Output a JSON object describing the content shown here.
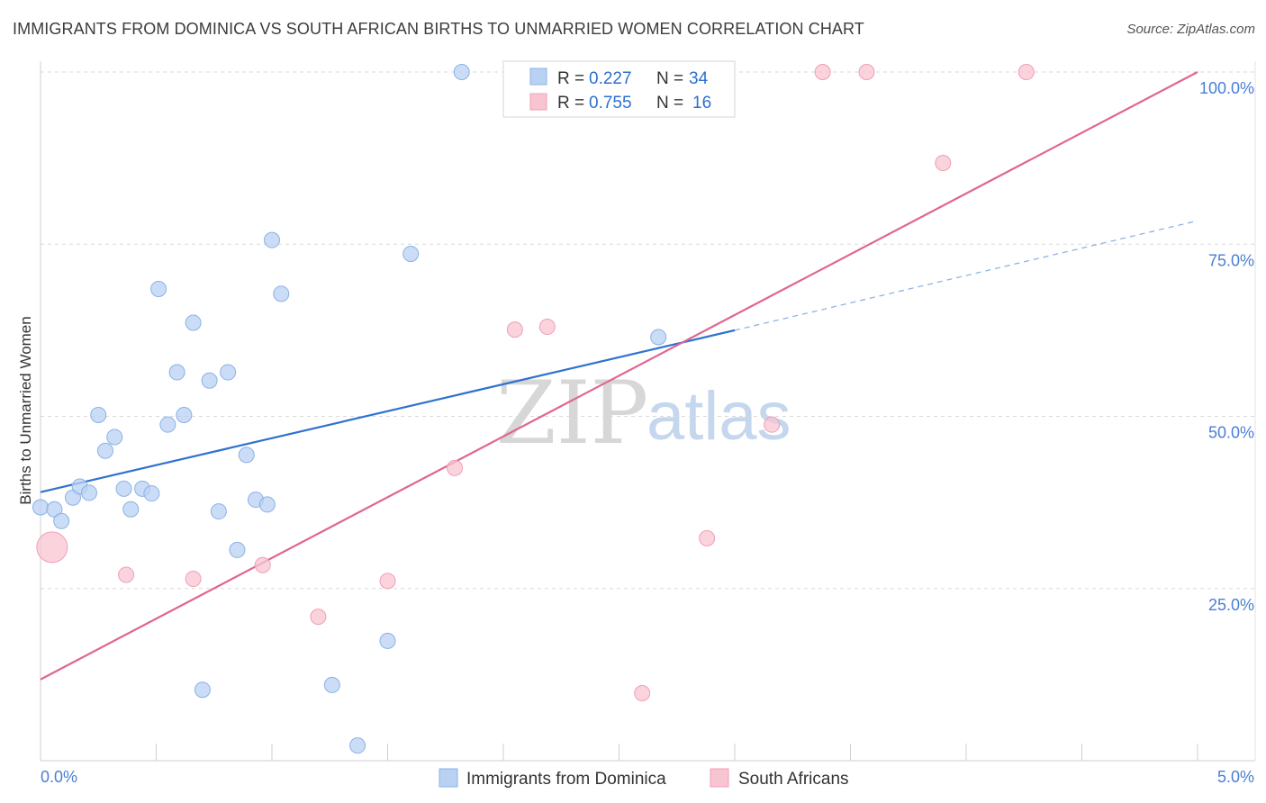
{
  "title": "IMMIGRANTS FROM DOMINICA VS SOUTH AFRICAN BIRTHS TO UNMARRIED WOMEN CORRELATION CHART",
  "source": "Source: ZipAtlas.com",
  "watermark": {
    "zip": "ZIP",
    "atlas": "atlas"
  },
  "legend_top": {
    "r_label": "R =",
    "n_label": "N =",
    "rows": [
      {
        "r": "0.227",
        "n": "34"
      },
      {
        "r": "0.755",
        "n": "16"
      }
    ]
  },
  "colors": {
    "blue_fill": "#b9d2f3",
    "blue_stroke": "#8ab1e6",
    "blue_line": "#2f72cf",
    "pink_fill": "#f8c4d2",
    "pink_stroke": "#ef9fb6",
    "pink_line": "#e0668f",
    "grid": "#d9d9d9",
    "axis_label": "#4a7ed6"
  },
  "chart_data": {
    "type": "scatter",
    "title": "IMMIGRANTS FROM DOMINICA VS SOUTH AFRICAN BIRTHS TO UNMARRIED WOMEN CORRELATION CHART",
    "xlabel": "",
    "ylabel": "Births to Unmarried Women",
    "xlim": [
      0,
      5
    ],
    "ylim": [
      0,
      100
    ],
    "x_ticks": [
      "0.0%",
      "5.0%"
    ],
    "y_ticks": [
      {
        "value": 25,
        "label": "25.0%"
      },
      {
        "value": 50,
        "label": "50.0%"
      },
      {
        "value": 75,
        "label": "75.0%"
      },
      {
        "value": 100,
        "label": "100.0%"
      }
    ],
    "series": [
      {
        "name": "Immigrants from Dominica",
        "color": "blue",
        "points": [
          {
            "x": 0.0,
            "y": 36.8
          },
          {
            "x": 0.06,
            "y": 36.5
          },
          {
            "x": 0.09,
            "y": 34.8
          },
          {
            "x": 0.14,
            "y": 38.2
          },
          {
            "x": 0.17,
            "y": 39.8
          },
          {
            "x": 0.21,
            "y": 38.9
          },
          {
            "x": 0.25,
            "y": 50.2
          },
          {
            "x": 0.28,
            "y": 45.0
          },
          {
            "x": 0.32,
            "y": 47.0
          },
          {
            "x": 0.36,
            "y": 39.5
          },
          {
            "x": 0.39,
            "y": 36.5
          },
          {
            "x": 0.44,
            "y": 39.5
          },
          {
            "x": 0.48,
            "y": 38.8
          },
          {
            "x": 0.51,
            "y": 68.5
          },
          {
            "x": 0.55,
            "y": 48.8
          },
          {
            "x": 0.59,
            "y": 56.4
          },
          {
            "x": 0.62,
            "y": 50.2
          },
          {
            "x": 0.66,
            "y": 63.6
          },
          {
            "x": 0.7,
            "y": 10.3
          },
          {
            "x": 0.73,
            "y": 55.2
          },
          {
            "x": 0.77,
            "y": 36.2
          },
          {
            "x": 0.81,
            "y": 56.4
          },
          {
            "x": 0.85,
            "y": 30.6
          },
          {
            "x": 0.89,
            "y": 44.4
          },
          {
            "x": 0.93,
            "y": 37.9
          },
          {
            "x": 0.98,
            "y": 37.2
          },
          {
            "x": 1.0,
            "y": 75.6
          },
          {
            "x": 1.04,
            "y": 67.8
          },
          {
            "x": 1.26,
            "y": 11.0
          },
          {
            "x": 1.37,
            "y": 2.2
          },
          {
            "x": 1.5,
            "y": 17.4
          },
          {
            "x": 1.6,
            "y": 73.6
          },
          {
            "x": 1.82,
            "y": 100.0
          },
          {
            "x": 2.67,
            "y": 61.5
          }
        ],
        "trend": {
          "x0": 0.0,
          "y0": 39.0,
          "x1": 3.0,
          "y1": 62.5,
          "dash_to_x": 5.0,
          "dash_to_y": 78.4
        }
      },
      {
        "name": "South Africans",
        "color": "pink",
        "points": [
          {
            "x": 0.05,
            "y": 31.0,
            "big": true
          },
          {
            "x": 0.37,
            "y": 27.0
          },
          {
            "x": 0.66,
            "y": 26.4
          },
          {
            "x": 0.96,
            "y": 28.4
          },
          {
            "x": 1.2,
            "y": 20.9
          },
          {
            "x": 1.5,
            "y": 26.1
          },
          {
            "x": 1.79,
            "y": 42.5
          },
          {
            "x": 2.05,
            "y": 62.6
          },
          {
            "x": 2.19,
            "y": 63.0
          },
          {
            "x": 2.6,
            "y": 9.8
          },
          {
            "x": 2.88,
            "y": 32.3
          },
          {
            "x": 3.16,
            "y": 48.8
          },
          {
            "x": 3.38,
            "y": 100.0
          },
          {
            "x": 3.57,
            "y": 100.0
          },
          {
            "x": 3.9,
            "y": 86.8
          },
          {
            "x": 4.26,
            "y": 100.0
          }
        ],
        "trend": {
          "x0": 0.0,
          "y0": 11.8,
          "x1": 5.0,
          "y1": 100.0
        }
      }
    ]
  }
}
